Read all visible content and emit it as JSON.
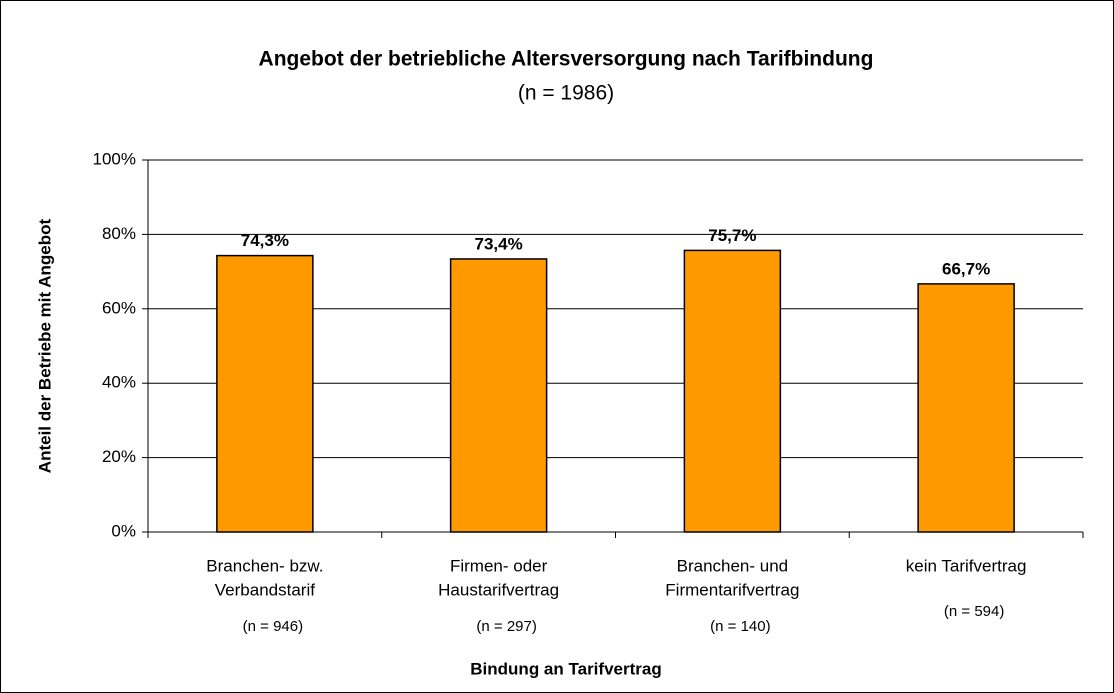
{
  "chart_data": {
    "type": "bar",
    "title": "Angebot der betriebliche Altersversorgung nach Tarifbindung",
    "subtitle": "(n = 1986)",
    "y_label": "Anteil der Betriebe mit Angebot",
    "x_label": "Bindung an Tarifvertrag",
    "categories": [
      [
        "Branchen- bzw.",
        "Verbandstarif",
        "(n = 946)"
      ],
      [
        "Firmen- oder",
        "Haustarifvertrag",
        "(n = 297)"
      ],
      [
        "Branchen- und",
        "Firmentarifvertrag",
        "(n = 140)"
      ],
      [
        "kein Tarifvertrag",
        "(n = 594)"
      ]
    ],
    "values": [
      74.3,
      73.4,
      75.7,
      66.7
    ],
    "value_labels": [
      "74,3%",
      "73,4%",
      "75,7%",
      "66,7%"
    ],
    "color": "#ff9900",
    "ylim": [
      0,
      100
    ],
    "yticks": [
      {
        "value": 0,
        "label": "0%"
      },
      {
        "value": 20,
        "label": "20%"
      },
      {
        "value": 40,
        "label": "40%"
      },
      {
        "value": 60,
        "label": "60%"
      },
      {
        "value": 80,
        "label": "80%"
      },
      {
        "value": 100,
        "label": "100%"
      }
    ],
    "grid": true
  }
}
